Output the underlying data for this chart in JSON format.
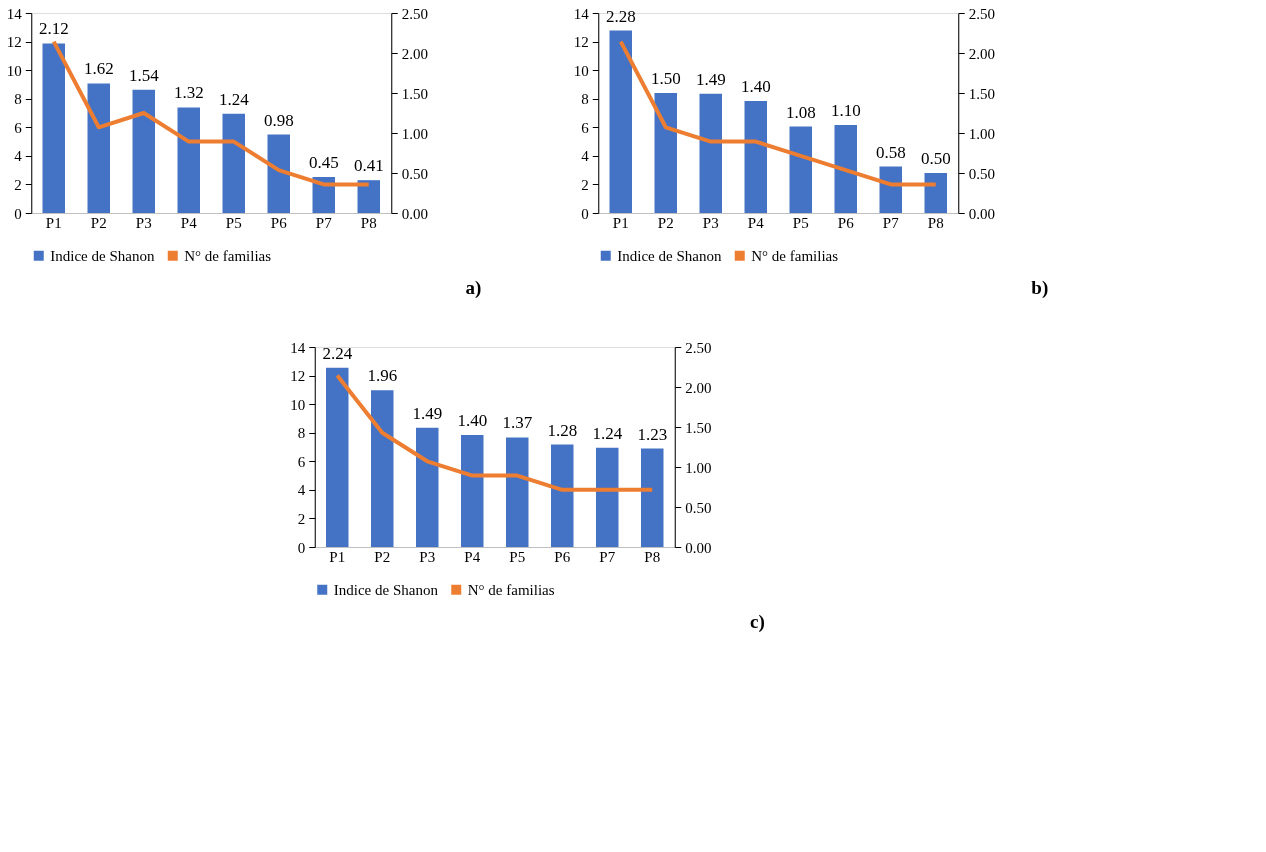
{
  "chart_data": [
    {
      "type": "bar",
      "categories": [
        "P1",
        "P2",
        "P3",
        "P4",
        "P5",
        "P6",
        "P7",
        "P8"
      ],
      "ylim": [
        0,
        14
      ],
      "yticks": [
        0,
        2,
        4,
        6,
        8,
        10,
        12,
        14
      ],
      "y2lim": [
        0,
        2.5
      ],
      "y2ticks": [
        {
          "value": 0,
          "label": "0.00"
        },
        {
          "value": 0.5,
          "label": "0.50"
        },
        {
          "value": 1,
          "label": "1.00"
        },
        {
          "value": 1.5,
          "label": "1.50"
        },
        {
          "value": 2,
          "label": "2.00"
        },
        {
          "value": 2.5,
          "label": "2.50"
        }
      ],
      "grid": false,
      "legend": "bottom",
      "annotations": [
        "a)"
      ],
      "series": [
        {
          "name": "Indice de Shanon",
          "axis": "y2",
          "color": "#4472c4",
          "values": [
            2.12,
            1.62,
            1.54,
            1.32,
            1.24,
            0.98,
            0.45,
            0.41
          ],
          "value_labels": [
            "2.12",
            "1.62",
            "1.54",
            "1.32",
            "1.24",
            "0.98",
            "0.45",
            "0.41"
          ]
        },
        {
          "name": "N° de familias",
          "type": "line",
          "color": "#ed7d31",
          "values": [
            12,
            6,
            7,
            5,
            5,
            3,
            2,
            2
          ]
        }
      ]
    },
    {
      "type": "bar",
      "categories": [
        "P1",
        "P2",
        "P3",
        "P4",
        "P5",
        "P6",
        "P7",
        "P8"
      ],
      "ylim": [
        0,
        14
      ],
      "yticks": [
        0,
        2,
        4,
        6,
        8,
        10,
        12,
        14
      ],
      "y2lim": [
        0,
        2.5
      ],
      "y2ticks": [
        {
          "value": 0,
          "label": "0.00"
        },
        {
          "value": 0.5,
          "label": "0.50"
        },
        {
          "value": 1,
          "label": "1.00"
        },
        {
          "value": 1.5,
          "label": "1.50"
        },
        {
          "value": 2,
          "label": "2.00"
        },
        {
          "value": 2.5,
          "label": "2.50"
        }
      ],
      "grid": false,
      "legend": "bottom",
      "annotations": [
        "b)"
      ],
      "series": [
        {
          "name": "Indice de Shanon",
          "axis": "y2",
          "color": "#4472c4",
          "values": [
            2.28,
            1.5,
            1.49,
            1.4,
            1.08,
            1.1,
            0.58,
            0.5
          ],
          "value_labels": [
            "2.28",
            "1.50",
            "1.49",
            "1.40",
            "1.08",
            "1.10",
            "0.58",
            "0.50"
          ]
        },
        {
          "name": "N° de familias",
          "type": "line",
          "color": "#ed7d31",
          "values": [
            12,
            6,
            5,
            5,
            4,
            3,
            2,
            2
          ]
        }
      ]
    },
    {
      "type": "bar",
      "categories": [
        "P1",
        "P2",
        "P3",
        "P4",
        "P5",
        "P6",
        "P7",
        "P8"
      ],
      "ylim": [
        0,
        14
      ],
      "yticks": [
        0,
        2,
        4,
        6,
        8,
        10,
        12,
        14
      ],
      "y2lim": [
        0,
        2.5
      ],
      "y2ticks": [
        {
          "value": 0,
          "label": "0.00"
        },
        {
          "value": 0.5,
          "label": "0.50"
        },
        {
          "value": 1,
          "label": "1.00"
        },
        {
          "value": 1.5,
          "label": "1.50"
        },
        {
          "value": 2,
          "label": "2.00"
        },
        {
          "value": 2.5,
          "label": "2.50"
        }
      ],
      "grid": false,
      "legend": "bottom",
      "annotations": [
        "c)"
      ],
      "series": [
        {
          "name": "Indice de Shanon",
          "axis": "y2",
          "color": "#4472c4",
          "values": [
            2.24,
            1.96,
            1.49,
            1.4,
            1.37,
            1.28,
            1.24,
            1.23
          ],
          "value_labels": [
            "2.24",
            "1.96",
            "1.49",
            "1.40",
            "1.37",
            "1.28",
            "1.24",
            "1.23"
          ]
        },
        {
          "name": "N° de familias",
          "type": "line",
          "color": "#ed7d31",
          "values": [
            12,
            8,
            6,
            5,
            5,
            4,
            4,
            4
          ]
        }
      ]
    }
  ]
}
